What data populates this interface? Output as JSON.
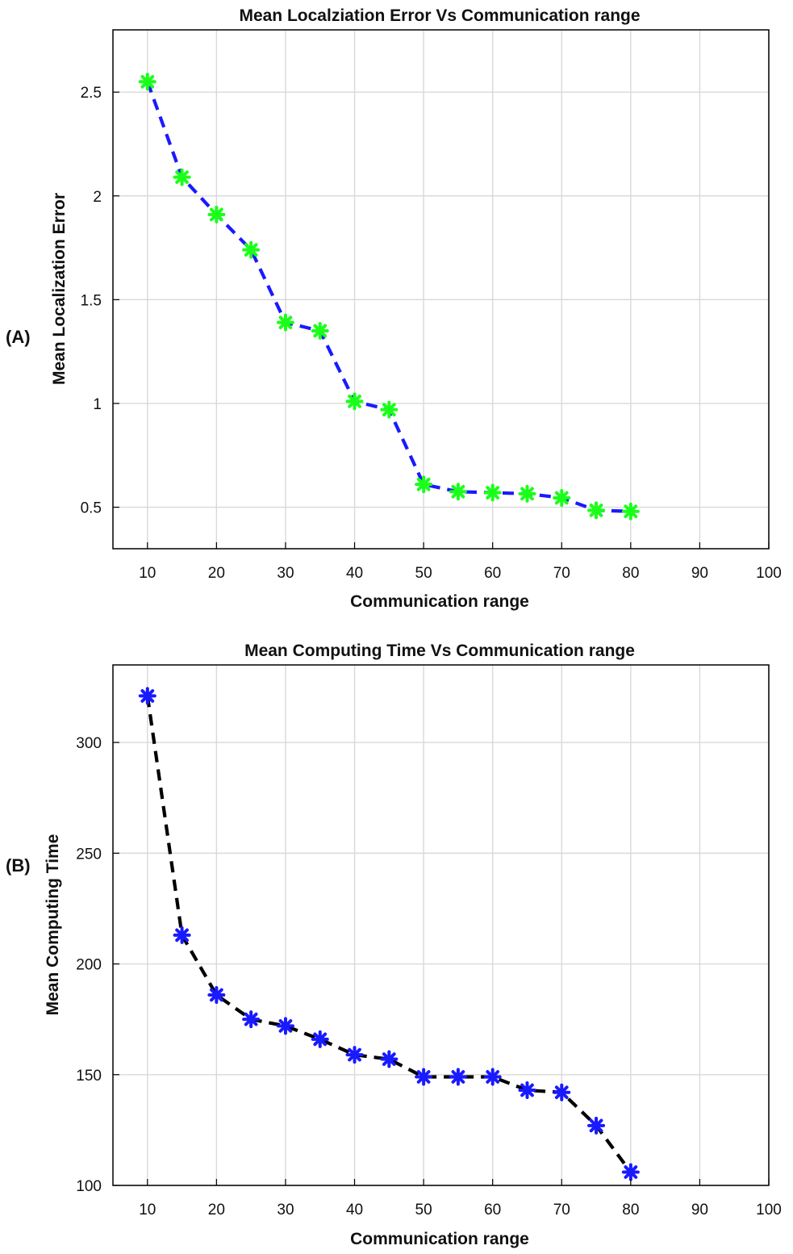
{
  "figure": {
    "panels": [
      {
        "label": "(A)",
        "line_color": "#1a1aff",
        "marker_color": "#1aff1a"
      },
      {
        "label": "(B)",
        "line_color": "#000000",
        "marker_color": "#1a1aff"
      }
    ]
  },
  "chart_data": [
    {
      "type": "line",
      "title": "Mean Localziation Error Vs Communication range",
      "xlabel": "Communication range",
      "ylabel": "Mean Localization Error",
      "xlim": [
        5,
        100
      ],
      "ylim": [
        0.3,
        2.8
      ],
      "xticks": [
        10,
        20,
        30,
        40,
        50,
        60,
        70,
        80,
        90,
        100
      ],
      "yticks": [
        0.5,
        1,
        1.5,
        2,
        2.5
      ],
      "ytick_labels": [
        "0.5",
        "1",
        "1.5",
        "2",
        "2.5"
      ],
      "grid": true,
      "line_style": "dashed",
      "marker": "asterisk",
      "series": [
        {
          "x": [
            10,
            15,
            20,
            25,
            30,
            35,
            40,
            45,
            50,
            55,
            60,
            65,
            70,
            75,
            80
          ],
          "values": [
            2.55,
            2.09,
            1.91,
            1.74,
            1.39,
            1.35,
            1.01,
            0.97,
            0.61,
            0.575,
            0.57,
            0.565,
            0.545,
            0.485,
            0.48
          ]
        }
      ]
    },
    {
      "type": "line",
      "title": "Mean Computing Time Vs Communication range",
      "xlabel": "Communication range",
      "ylabel": "Mean Computing Time",
      "xlim": [
        5,
        100
      ],
      "ylim": [
        100,
        335
      ],
      "xticks": [
        10,
        20,
        30,
        40,
        50,
        60,
        70,
        80,
        90,
        100
      ],
      "yticks": [
        100,
        150,
        200,
        250,
        300
      ],
      "ytick_labels": [
        "100",
        "150",
        "200",
        "250",
        "300"
      ],
      "grid": true,
      "line_style": "dashed",
      "marker": "asterisk",
      "series": [
        {
          "x": [
            10,
            15,
            20,
            25,
            30,
            35,
            40,
            45,
            50,
            55,
            60,
            65,
            70,
            75,
            80
          ],
          "values": [
            321,
            213,
            186,
            175,
            172,
            166,
            159,
            157,
            149,
            149,
            149,
            143,
            142,
            127,
            106
          ]
        }
      ]
    }
  ]
}
